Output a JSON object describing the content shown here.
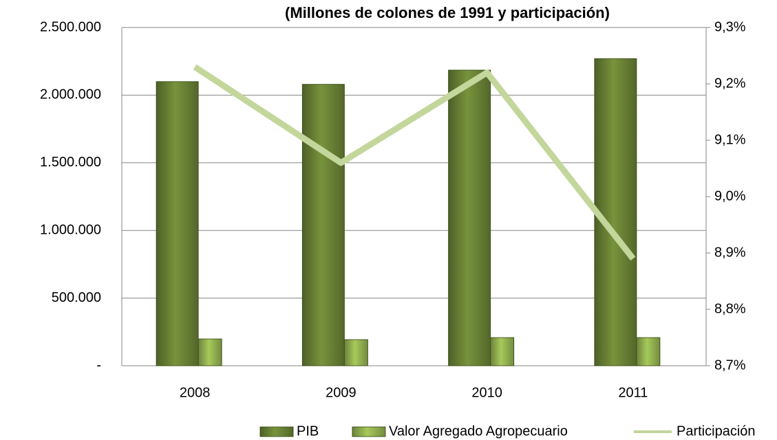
{
  "chart_data": {
    "type": "bar",
    "title": "(Millones de colones de 1991 y participación)",
    "categories": [
      "2008",
      "2009",
      "2010",
      "2011"
    ],
    "series": [
      {
        "name": "PIB",
        "type": "bar",
        "color": "#77933c",
        "values": [
          2100000,
          2080000,
          2185000,
          2270000
        ]
      },
      {
        "name": "Valor Agregado Agropecuario",
        "type": "bar",
        "color": "#a6c95a",
        "values": [
          198000,
          193000,
          208000,
          208000
        ]
      },
      {
        "name": "Participación",
        "type": "line",
        "axis": "y2",
        "color": "#c3d69b",
        "values": [
          9.23,
          9.06,
          9.22,
          8.89
        ]
      }
    ],
    "ylim": [
      0,
      2500000
    ],
    "yticks": [
      {
        "value": 0,
        "label": "-"
      },
      {
        "value": 500000,
        "label": "500.000"
      },
      {
        "value": 1000000,
        "label": "1.000.000"
      },
      {
        "value": 1500000,
        "label": "1.500.000"
      },
      {
        "value": 2000000,
        "label": "2.000.000"
      },
      {
        "value": 2500000,
        "label": "2.500.000"
      }
    ],
    "y2lim": [
      8.7,
      9.3
    ],
    "y2ticks": [
      {
        "value": 8.7,
        "label": "8,7%"
      },
      {
        "value": 8.8,
        "label": "8,8%"
      },
      {
        "value": 8.9,
        "label": "8,9%"
      },
      {
        "value": 9.0,
        "label": "9,0%"
      },
      {
        "value": 9.1,
        "label": "9,1%"
      },
      {
        "value": 9.2,
        "label": "9,2%"
      },
      {
        "value": 9.3,
        "label": "9,3%"
      }
    ],
    "grid": true,
    "legend": "bottom"
  }
}
